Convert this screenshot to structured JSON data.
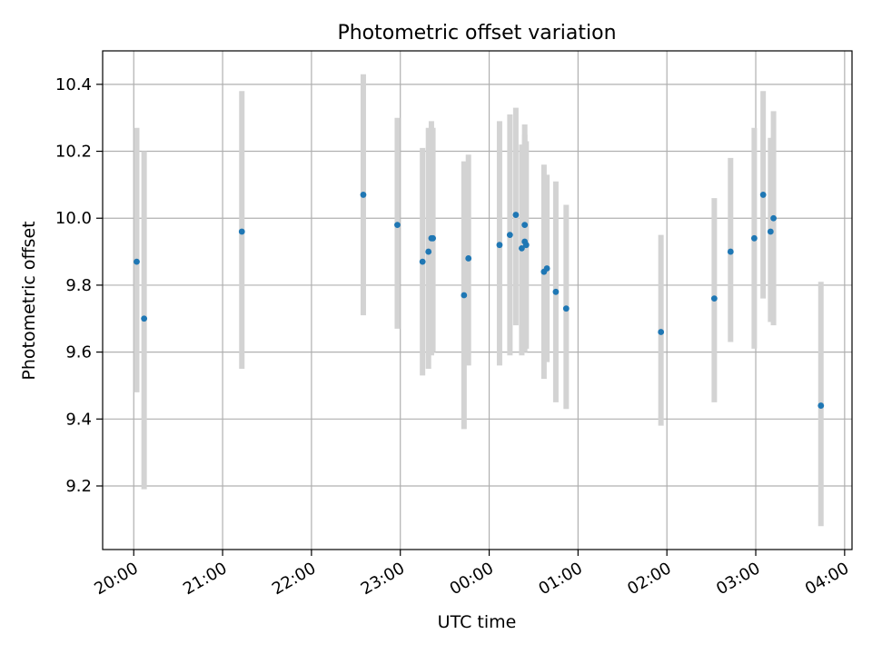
{
  "chart_data": {
    "type": "scatter",
    "title": "Photometric offset variation",
    "xlabel": "UTC time",
    "ylabel": "Photometric offset",
    "x_ticks": [
      "20:00",
      "21:00",
      "22:00",
      "23:00",
      "00:00",
      "01:00",
      "02:00",
      "03:00",
      "04:00"
    ],
    "y_ticks": [
      "9.2",
      "9.4",
      "9.6",
      "9.8",
      "10.0",
      "10.2",
      "10.4"
    ],
    "xlim": [
      "19:39",
      "04:05"
    ],
    "ylim": [
      9.01,
      10.5
    ],
    "grid": true,
    "point_color": "#1f77b4",
    "errorbar_color": "#d3d3d3",
    "points": [
      {
        "x": "20:02",
        "y": 9.87,
        "err_low": 9.48,
        "err_high": 10.27
      },
      {
        "x": "20:07",
        "y": 9.7,
        "err_low": 9.19,
        "err_high": 10.2
      },
      {
        "x": "21:13",
        "y": 9.96,
        "err_low": 9.55,
        "err_high": 10.38
      },
      {
        "x": "22:35",
        "y": 10.07,
        "err_low": 9.71,
        "err_high": 10.43
      },
      {
        "x": "22:58",
        "y": 9.98,
        "err_low": 9.67,
        "err_high": 10.3
      },
      {
        "x": "23:15",
        "y": 9.87,
        "err_low": 9.53,
        "err_high": 10.21
      },
      {
        "x": "23:19",
        "y": 9.9,
        "err_low": 9.55,
        "err_high": 10.27
      },
      {
        "x": "23:21",
        "y": 9.94,
        "err_low": 9.59,
        "err_high": 10.29
      },
      {
        "x": "23:22",
        "y": 9.94,
        "err_low": 9.6,
        "err_high": 10.27
      },
      {
        "x": "23:43",
        "y": 9.77,
        "err_low": 9.37,
        "err_high": 10.17
      },
      {
        "x": "23:46",
        "y": 9.88,
        "err_low": 9.56,
        "err_high": 10.19
      },
      {
        "x": "00:07",
        "y": 9.92,
        "err_low": 9.56,
        "err_high": 10.29
      },
      {
        "x": "00:14",
        "y": 9.95,
        "err_low": 9.59,
        "err_high": 10.31
      },
      {
        "x": "00:18",
        "y": 10.01,
        "err_low": 9.68,
        "err_high": 10.33
      },
      {
        "x": "00:22",
        "y": 9.91,
        "err_low": 9.59,
        "err_high": 10.22
      },
      {
        "x": "00:24",
        "y": 9.98,
        "err_low": 9.69,
        "err_high": 10.28
      },
      {
        "x": "00:24",
        "y": 9.93,
        "err_low": 9.6,
        "err_high": 10.25
      },
      {
        "x": "00:25",
        "y": 9.92,
        "err_low": 9.61,
        "err_high": 10.23
      },
      {
        "x": "00:37",
        "y": 9.84,
        "err_low": 9.52,
        "err_high": 10.16
      },
      {
        "x": "00:39",
        "y": 9.85,
        "err_low": 9.57,
        "err_high": 10.13
      },
      {
        "x": "00:45",
        "y": 9.78,
        "err_low": 9.45,
        "err_high": 10.11
      },
      {
        "x": "00:52",
        "y": 9.73,
        "err_low": 9.43,
        "err_high": 10.04
      },
      {
        "x": "01:56",
        "y": 9.66,
        "err_low": 9.38,
        "err_high": 9.95
      },
      {
        "x": "02:32",
        "y": 9.76,
        "err_low": 9.45,
        "err_high": 10.06
      },
      {
        "x": "02:43",
        "y": 9.9,
        "err_low": 9.63,
        "err_high": 10.18
      },
      {
        "x": "02:59",
        "y": 9.94,
        "err_low": 9.61,
        "err_high": 10.27
      },
      {
        "x": "03:05",
        "y": 10.07,
        "err_low": 9.76,
        "err_high": 10.38
      },
      {
        "x": "03:10",
        "y": 9.96,
        "err_low": 9.69,
        "err_high": 10.24
      },
      {
        "x": "03:12",
        "y": 10.0,
        "err_low": 9.68,
        "err_high": 10.32
      },
      {
        "x": "03:44",
        "y": 9.44,
        "err_low": 9.08,
        "err_high": 9.81
      }
    ]
  }
}
